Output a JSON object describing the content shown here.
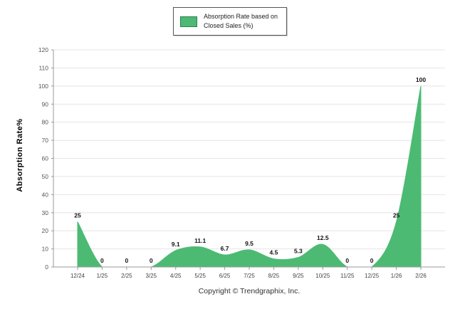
{
  "legend": {
    "line1": "Absorption Rate based on",
    "line2": "Closed Sales (%)"
  },
  "footer": {
    "text": "Copyright © Trendgraphix, Inc."
  },
  "chart_data": {
    "type": "area",
    "title": "",
    "xlabel": "",
    "ylabel": "Absorption Rate%",
    "categories": [
      "12/24",
      "1/25",
      "2/25",
      "3/25",
      "4/25",
      "5/25",
      "6/25",
      "7/25",
      "8/25",
      "9/25",
      "10/25",
      "11/25",
      "12/25",
      "1/26",
      "2/26"
    ],
    "values": [
      25,
      0,
      0,
      0,
      9.1,
      11.1,
      6.7,
      9.5,
      4.5,
      5.3,
      12.5,
      0,
      0,
      25,
      100
    ],
    "labels": [
      "25",
      "0",
      "0",
      "0",
      "9.1",
      "11.1",
      "6.7",
      "9.5",
      "4.5",
      "5.3",
      "12.5",
      "0",
      "0",
      "25",
      "100"
    ],
    "series_name": "Absorption Rate based on Closed Sales (%)",
    "ylim": [
      0,
      120
    ],
    "ytick_step": 10,
    "grid": true,
    "legend_position": "top-center",
    "color": "#4dba74",
    "axis_color": "#999999",
    "grid_color": "#e4e4e4"
  }
}
